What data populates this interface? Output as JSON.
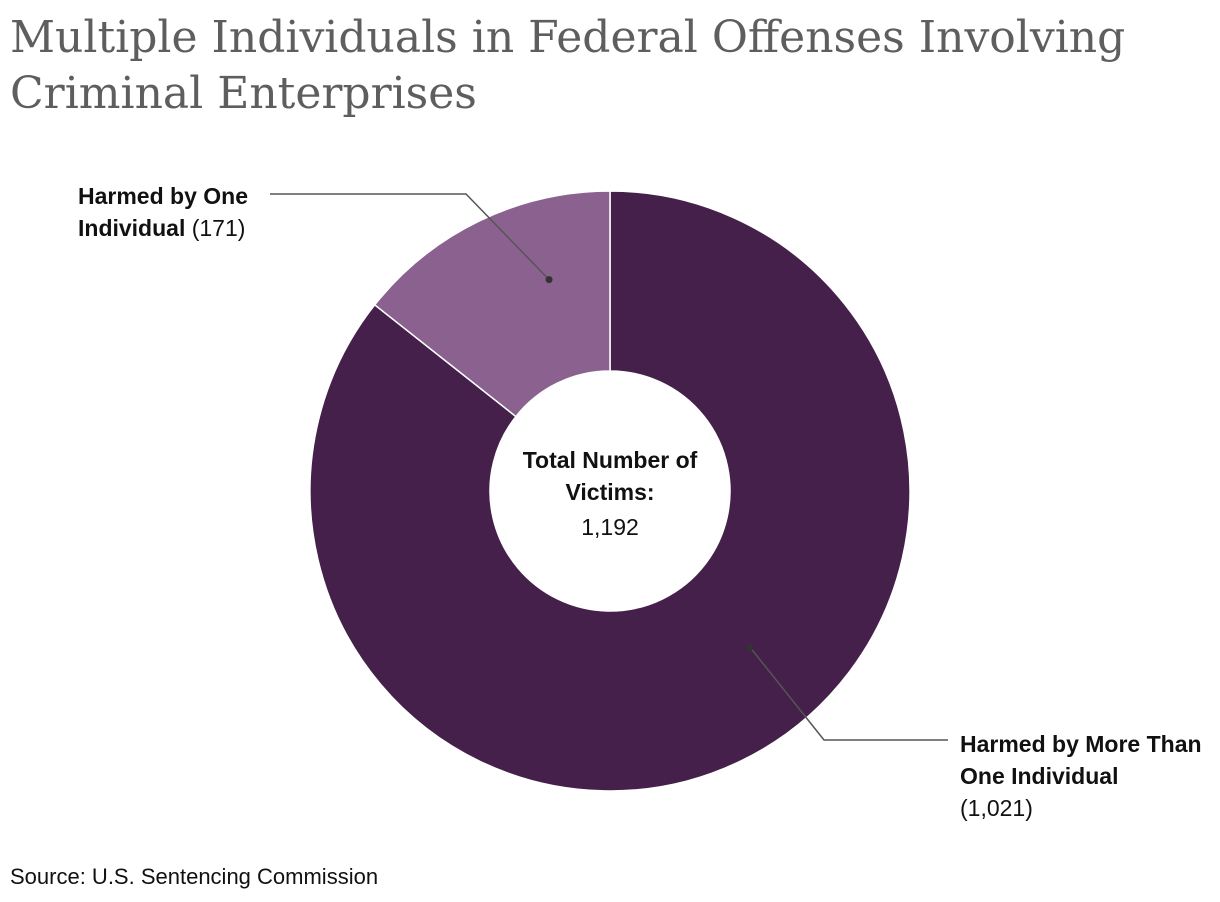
{
  "title": "Multiple Individuals in Federal Offenses Involving Criminal Enterprises",
  "source": "Source: U.S. Sentencing Commission",
  "chart_data": {
    "type": "pie",
    "donut": true,
    "center_label": {
      "title": "Total Number of Victims:",
      "value": "1,192"
    },
    "total": 1192,
    "slices": [
      {
        "name": "Harmed by More Than One Individual",
        "value": 1021,
        "value_label": "(1,021)",
        "color": "#45204a"
      },
      {
        "name": "Harmed by One Individual",
        "value": 171,
        "value_label": "(171)",
        "color": "#8b628f"
      }
    ],
    "slice_border_color": "#ffffff",
    "leader_line_color": "#555555"
  }
}
